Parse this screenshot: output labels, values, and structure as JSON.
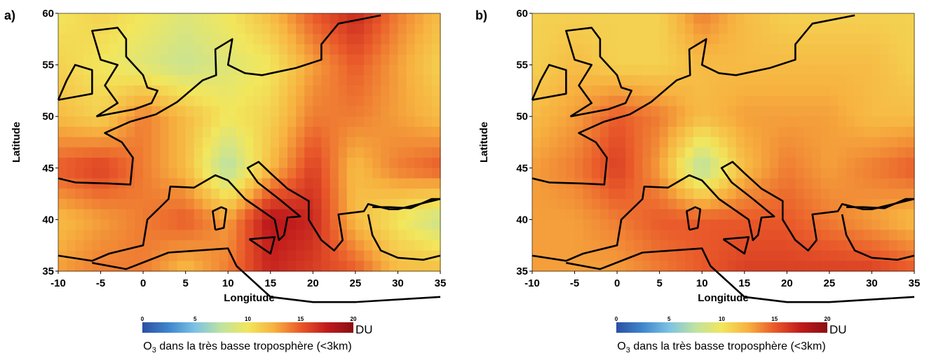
{
  "panels": [
    {
      "letter": "a)",
      "caption_prefix": "O",
      "caption_sub": "3",
      "caption_rest": " dans la très basse troposphère (<3km)"
    },
    {
      "letter": "b)",
      "caption_prefix": "O",
      "caption_sub": "3",
      "caption_rest": " dans la très basse troposphère (<3km)"
    }
  ],
  "colorbar": {
    "unit": "DU",
    "range": [
      0,
      20
    ],
    "ticks": [
      "0",
      "5",
      "10",
      "15",
      "20"
    ],
    "colors": [
      "#2c4fa3",
      "#3f86cc",
      "#7cc2e4",
      "#bfe3a0",
      "#f2e65c",
      "#f7b13f",
      "#e9592a",
      "#c01a1c",
      "#8b0f12"
    ]
  },
  "chart_data": [
    {
      "type": "heatmap",
      "title": "a)",
      "xlabel": "Longitude",
      "ylabel": "Latitude",
      "xlim": [
        -10,
        35
      ],
      "ylim": [
        35,
        60
      ],
      "xticks": [
        "-10",
        "-5",
        "0",
        "5",
        "10",
        "15",
        "20",
        "25",
        "30",
        "35"
      ],
      "yticks": [
        "35",
        "40",
        "45",
        "50",
        "55",
        "60"
      ],
      "colorbar": {
        "label": "O3 dans la très basse troposphère (<3km)",
        "unit": "DU",
        "range": [
          0,
          20
        ]
      },
      "x": [
        -10,
        -5,
        0,
        5,
        10,
        15,
        20,
        25,
        30,
        35
      ],
      "y": [
        60,
        55,
        50,
        45,
        40,
        35
      ],
      "values": [
        [
          10,
          11,
          10,
          9,
          10,
          12,
          15,
          17,
          14,
          12
        ],
        [
          11,
          10,
          9,
          8,
          9,
          10,
          13,
          15,
          13,
          11
        ],
        [
          12,
          11,
          14,
          12,
          10,
          11,
          14,
          14,
          13,
          12
        ],
        [
          15,
          16,
          14,
          12,
          7,
          12,
          16,
          12,
          14,
          15
        ],
        [
          12,
          13,
          14,
          15,
          13,
          18,
          17,
          12,
          10,
          8
        ],
        [
          13,
          14,
          14,
          12,
          14,
          17,
          16,
          15,
          12,
          12
        ]
      ]
    },
    {
      "type": "heatmap",
      "title": "b)",
      "xlabel": "Longitude",
      "ylabel": "Latitude",
      "xlim": [
        -10,
        35
      ],
      "ylim": [
        35,
        60
      ],
      "xticks": [
        "-10",
        "-5",
        "0",
        "5",
        "10",
        "15",
        "20",
        "25",
        "30",
        "35"
      ],
      "yticks": [
        "35",
        "40",
        "45",
        "50",
        "55",
        "60"
      ],
      "colorbar": {
        "label": "O3 dans la très basse troposphère (<3km)",
        "unit": "DU",
        "range": [
          0,
          20
        ]
      },
      "x": [
        -10,
        -5,
        0,
        5,
        10,
        15,
        20,
        25,
        30,
        35
      ],
      "y": [
        60,
        55,
        50,
        45,
        40,
        35
      ],
      "values": [
        [
          11,
          11,
          11,
          11,
          14,
          12,
          11,
          11,
          11,
          11
        ],
        [
          11,
          12,
          11,
          11,
          12,
          12,
          12,
          12,
          12,
          11
        ],
        [
          12,
          13,
          15,
          14,
          12,
          13,
          13,
          13,
          12,
          12
        ],
        [
          13,
          14,
          16,
          13,
          7,
          12,
          14,
          13,
          14,
          15
        ],
        [
          13,
          13,
          14,
          15,
          15,
          15,
          15,
          14,
          13,
          12
        ],
        [
          13,
          13,
          13,
          14,
          15,
          16,
          16,
          16,
          16,
          15
        ]
      ]
    }
  ]
}
